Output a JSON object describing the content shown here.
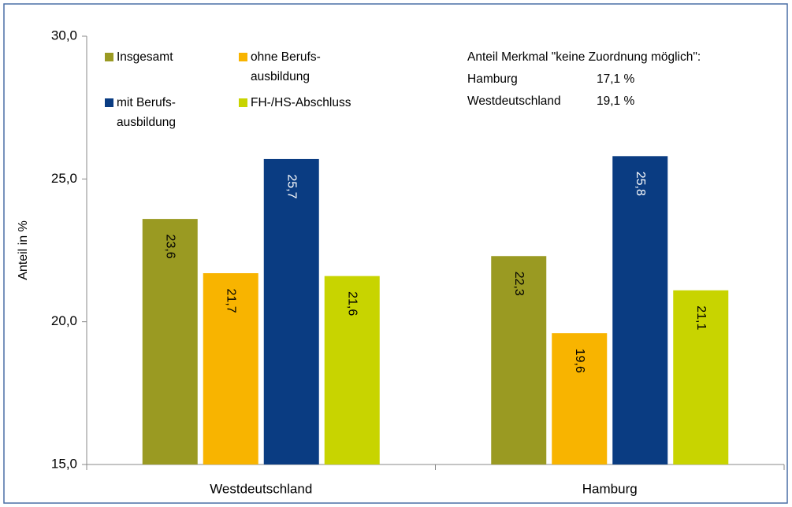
{
  "chart_data": {
    "type": "bar",
    "categories": [
      "Westdeutschland",
      "Hamburg"
    ],
    "series": [
      {
        "name": "Insgesamt",
        "color": "#9a9a22",
        "values": [
          23.6,
          22.3
        ],
        "value_labels": [
          "23,6",
          "22,3"
        ]
      },
      {
        "name": "ohne Berufs-\nausbildung",
        "color": "#f8b400",
        "values": [
          21.7,
          19.6
        ],
        "value_labels": [
          "21,7",
          "19,6"
        ]
      },
      {
        "name": "mit Berufs-\nausbildung",
        "color": "#0a3c82",
        "values": [
          25.7,
          25.8
        ],
        "value_labels": [
          "25,7",
          "25,8"
        ]
      },
      {
        "name": "FH-/HS-Abschluss",
        "color": "#c8d400",
        "values": [
          21.6,
          21.1
        ],
        "value_labels": [
          "21,6",
          "21,1"
        ]
      }
    ],
    "y_label": "Anteil in %",
    "ylim": [
      15,
      30
    ],
    "yticks": [
      {
        "value": 15,
        "label": "15,0"
      },
      {
        "value": 20,
        "label": "20,0"
      },
      {
        "value": 25,
        "label": "25,0"
      },
      {
        "value": 30,
        "label": "30,0"
      }
    ],
    "annotation": {
      "title": "Anteil Merkmal \"keine Zuordnung möglich\":",
      "rows": [
        [
          "Hamburg",
          "17,1 %"
        ],
        [
          "Westdeutschland",
          "19,1 %"
        ]
      ]
    }
  }
}
